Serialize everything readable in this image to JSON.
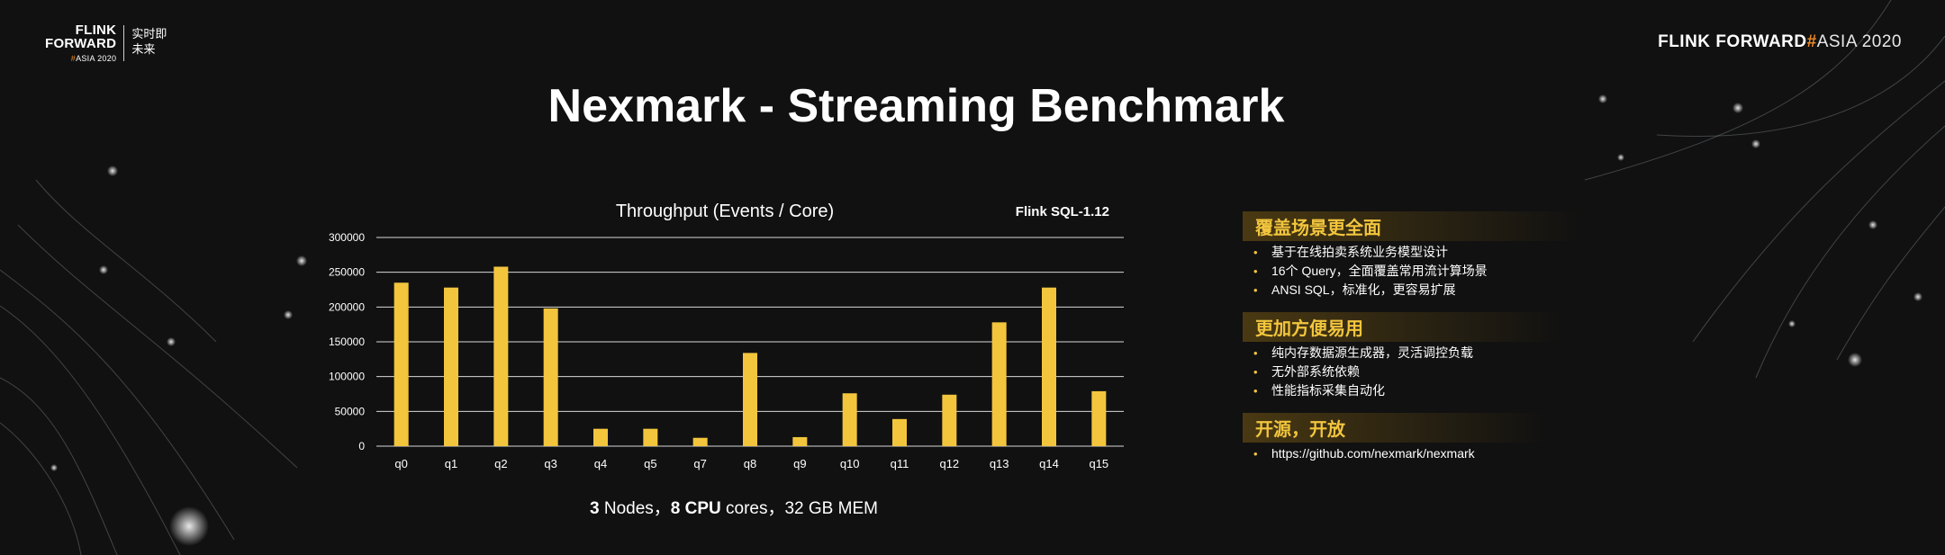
{
  "logos": {
    "left_wordmark_line1": "FLINK",
    "left_wordmark_line2": "FORWARD",
    "left_sub_hash": "#",
    "left_sub_text": "ASIA 2020",
    "left_cn": "实时即未来",
    "right_flink": "FLINK",
    "right_forward": "FORWARD",
    "right_hash": "#",
    "right_asia": "ASIA 2020"
  },
  "title": "Nexmark - Streaming Benchmark",
  "chart_data": {
    "type": "bar",
    "title": "Throughput (Events / Core)",
    "annotation": "Flink SQL-1.12",
    "categories": [
      "q0",
      "q1",
      "q2",
      "q3",
      "q4",
      "q5",
      "q7",
      "q8",
      "q9",
      "q10",
      "q11",
      "q12",
      "q13",
      "q14",
      "q15"
    ],
    "values": [
      235000,
      228000,
      258000,
      198000,
      25000,
      25000,
      12000,
      134000,
      13000,
      76000,
      39000,
      74000,
      178000,
      228000,
      79000
    ],
    "yticks": [
      0,
      50000,
      100000,
      150000,
      200000,
      250000,
      300000
    ],
    "ylim": [
      0,
      300000
    ],
    "grid": true,
    "bar_color": "#f2c53d"
  },
  "spec": {
    "nodes_num": "3",
    "nodes_text": " Nodes，",
    "cpu_num": "8 CPU",
    "cpu_text": " cores，32 GB MEM"
  },
  "features": [
    {
      "heading": "覆盖场景更全面",
      "items": [
        "基于在线拍卖系统业务模型设计",
        "16个 Query，全面覆盖常用流计算场景",
        "ANSI SQL，标准化，更容易扩展"
      ]
    },
    {
      "heading": "更加方便易用",
      "items": [
        "纯内存数据源生成器，灵活调控负载",
        "无外部系统依赖",
        "性能指标采集自动化"
      ]
    },
    {
      "heading": "开源，开放",
      "items": [
        "https://github.com/nexmark/nexmark"
      ]
    }
  ]
}
